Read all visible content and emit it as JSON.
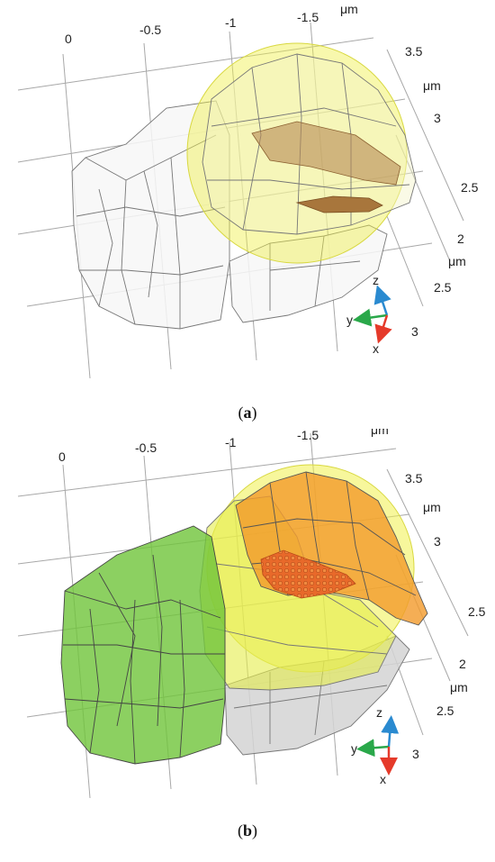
{
  "panels": [
    {
      "caption_open": "(",
      "caption_letter": "a",
      "caption_close": ")",
      "top_ticks": [
        "0",
        "-0.5",
        "-1",
        "-1.5"
      ],
      "top_unit": "μm",
      "right_ticks_upper": [
        "3.5",
        "3",
        "2.5"
      ],
      "right_unit_upper": "μm",
      "right_ticks_lower": [
        "2",
        "2.5",
        "3"
      ],
      "right_unit_lower": "μm",
      "axes": {
        "z": "z",
        "y": "y",
        "x": "x"
      }
    },
    {
      "caption_open": "(",
      "caption_letter": "b",
      "caption_close": ")",
      "top_ticks": [
        "0",
        "-0.5",
        "-1",
        "-1.5"
      ],
      "top_unit": "μm",
      "right_ticks_upper": [
        "3.5",
        "3",
        "2.5"
      ],
      "right_unit_upper": "μm",
      "right_ticks_lower": [
        "2",
        "2.5",
        "3"
      ],
      "right_unit_lower": "μm",
      "axes": {
        "z": "z",
        "y": "y",
        "x": "x"
      }
    }
  ],
  "colors": {
    "grid": "#9a9a9a",
    "mesh": "#7a7a7a",
    "sphere": "#f2f25a",
    "nucleus": "#b07a3e",
    "green_cell": "#6fc43a",
    "orange_body": "#f39a2a",
    "x_axis": "#e53a2a",
    "y_axis": "#2aa84a",
    "z_axis": "#2a8ad0"
  }
}
